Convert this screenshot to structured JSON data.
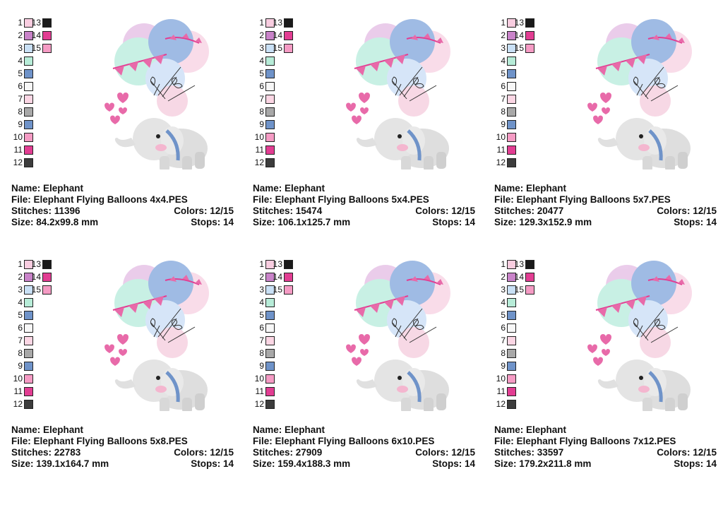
{
  "labels": {
    "name": "Name: ",
    "file": "File: ",
    "stitches": "Stitches: ",
    "colors": "Colors: ",
    "size": "Size: ",
    "stops": "Stops: "
  },
  "palette": [
    {
      "num": "1",
      "color": "#f8cde0"
    },
    {
      "num": "2",
      "color": "#c983c9"
    },
    {
      "num": "3",
      "color": "#c9e0f5"
    },
    {
      "num": "4",
      "color": "#b7ecd8"
    },
    {
      "num": "5",
      "color": "#6f93c9"
    },
    {
      "num": "6",
      "color": "#f7f7f7"
    },
    {
      "num": "7",
      "color": "#fbd6e4"
    },
    {
      "num": "8",
      "color": "#a8a8a8"
    },
    {
      "num": "9",
      "color": "#6f93c9"
    },
    {
      "num": "10",
      "color": "#f59bc4"
    },
    {
      "num": "11",
      "color": "#e23d92"
    },
    {
      "num": "12",
      "color": "#3c3c3c"
    },
    {
      "num": "13",
      "color": "#1a1a1a"
    },
    {
      "num": "14",
      "color": "#e23d92"
    },
    {
      "num": "15",
      "color": "#f59bc4"
    }
  ],
  "designs": [
    {
      "name": "Elephant",
      "file": "Elephant Flying Balloons 4x4.PES",
      "stitches": "11396",
      "colors": "12/15",
      "size": "84.2x99.8 mm",
      "stops": "14"
    },
    {
      "name": "Elephant",
      "file": "Elephant Flying Balloons 5x4.PES",
      "stitches": "15474",
      "colors": "12/15",
      "size": "106.1x125.7 mm",
      "stops": "14"
    },
    {
      "name": "Elephant",
      "file": "Elephant Flying Balloons 5x7.PES",
      "stitches": "20477",
      "colors": "12/15",
      "size": "129.3x152.9 mm",
      "stops": "14"
    },
    {
      "name": "Elephant",
      "file": "Elephant Flying Balloons 5x8.PES",
      "stitches": "22783",
      "colors": "12/15",
      "size": "139.1x164.7 mm",
      "stops": "14"
    },
    {
      "name": "Elephant",
      "file": "Elephant Flying Balloons 6x10.PES",
      "stitches": "27909",
      "colors": "12/15",
      "size": "159.4x188.3 mm",
      "stops": "14"
    },
    {
      "name": "Elephant",
      "file": "Elephant Flying Balloons 7x12.PES",
      "stitches": "33597",
      "colors": "12/15",
      "size": "179.2x211.8 mm",
      "stops": "14"
    }
  ]
}
